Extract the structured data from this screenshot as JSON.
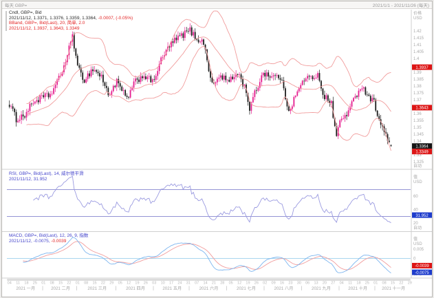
{
  "window": {
    "title_left": "每天 GBP=",
    "title_right": "2021/1/1 - 2021/11/26 (每天)"
  },
  "main_panel": {
    "legend": {
      "l1": "Cndl, GBP=, Bid",
      "l2a": "2021/11/12, 1.3371, 1.3376, 1.3359, 1.3364, ",
      "l2b": "-0.0007, (-0.05%)",
      "l3": "BBand, GBP=, Bid(Last), 20, 简单, 2.0",
      "l4": "2021/11/12, 1.3937, 1.3643, 1.3349"
    },
    "axis": {
      "label": "价格",
      "currency": "USD",
      "auto": "自动",
      "ticks": [
        1.42,
        1.415,
        1.41,
        1.405,
        1.4,
        1.395,
        1.39,
        1.385,
        1.38,
        1.375,
        1.37,
        1.365,
        1.36,
        1.355,
        1.35,
        1.345,
        1.34,
        1.335,
        1.33,
        1.325
      ]
    },
    "badges": [
      {
        "value": 1.3937,
        "type": "red"
      },
      {
        "value": 1.3643,
        "type": "red"
      },
      {
        "value": 1.3364,
        "type": "black"
      },
      {
        "value": 1.3349,
        "type": "red"
      }
    ]
  },
  "rsi_panel": {
    "legend": {
      "l1": "RSI, GBP=, Bid(Last), 14, 威尔德平滑",
      "l2": "2021/11/12, 31.952"
    },
    "axis": {
      "label": "值",
      "currency": "USD",
      "auto": "自动",
      "ticks": [
        60,
        40,
        20
      ],
      "bands": [
        70,
        30
      ],
      "badges": [
        {
          "value": 31.952,
          "type": "blue"
        }
      ]
    }
  },
  "macd_panel": {
    "legend": {
      "l1": "MACD, GBP=, Bid(Last), 12, 26, 9, 指数",
      "l2a": "2021/11/12, -0.0075, ",
      "l2b": "-0.0039"
    },
    "axis": {
      "label": "值",
      "currency": "USD",
      "auto": "自动",
      "ticks": [
        0.005,
        0
      ],
      "badges": [
        {
          "value": -0.0039,
          "type": "red"
        },
        {
          "value": -0.0075,
          "type": "blue"
        }
      ]
    }
  },
  "x_axis": {
    "day_labels": [
      "04",
      "11",
      "18",
      "25",
      "01",
      "08",
      "15",
      "22",
      "01",
      "08",
      "15",
      "22",
      "29",
      "05",
      "12",
      "19",
      "26",
      "03",
      "10",
      "17",
      "24",
      "31",
      "07",
      "14",
      "21",
      "28",
      "05",
      "12",
      "19",
      "26",
      "02",
      "09",
      "16",
      "23",
      "30",
      "06",
      "13",
      "20",
      "27",
      "04",
      "11",
      "18",
      "25",
      "01",
      "08",
      "15",
      "22",
      "29"
    ],
    "months": [
      {
        "label": "2021 一月",
        "days": 21
      },
      {
        "label": "2021 二月",
        "days": 20
      },
      {
        "label": "2021 三月",
        "days": 23
      },
      {
        "label": "2021 四月",
        "days": 22
      },
      {
        "label": "2021 五月",
        "days": 21
      },
      {
        "label": "2021 六月",
        "days": 22
      },
      {
        "label": "2021 七月",
        "days": 22
      },
      {
        "label": "2021 八月",
        "days": 22
      },
      {
        "label": "2021 九月",
        "days": 22
      },
      {
        "label": "2021 十月",
        "days": 21
      },
      {
        "label": "2021 十一月",
        "days": 21
      }
    ]
  },
  "colors": {
    "up": "#e51c8e",
    "down": "#1c1c1c",
    "bband": "#f19c9c",
    "rsi_line": "#9a9ae0",
    "rsi_band": "#8585cf",
    "macd_line": "#7cb5ef",
    "macd_signal": "#f19c9c",
    "macd_zero": "#a9d6ef",
    "badge_red": "#dd1515",
    "badge_black": "#141414",
    "badge_blue": "#1e3ccc",
    "tick_text": "#a9a9a9",
    "day_text": "#b5b5b5",
    "month_text": "#a6a6a6",
    "grid_line": "#cfcfcf"
  },
  "chart_data": {
    "type": "candlestick",
    "instrument": "GBP=",
    "period": "每天",
    "date_range": "2021/1/1 - 2021/11/26",
    "last_date": "2021/11/12",
    "ohlc_last": {
      "open": 1.3371,
      "high": 1.3376,
      "low": 1.3359,
      "close": 1.3364,
      "change": -0.0007,
      "change_pct": "-0.05%"
    },
    "indicators": {
      "bollinger": {
        "period": 20,
        "method": "简单",
        "width": 2.0,
        "upper": 1.3937,
        "mid": 1.3643,
        "lower": 1.3349
      },
      "rsi": {
        "period": 14,
        "method": "威尔德平滑",
        "value": 31.952,
        "upper_band": 70,
        "lower_band": 30
      },
      "macd": {
        "fast": 12,
        "slow": 26,
        "signal_period": 9,
        "method": "指数",
        "macd_value": -0.0075,
        "signal_value": -0.0039
      }
    },
    "price_axis": {
      "min": 1.3225,
      "max": 1.4275,
      "tick_step": 0.005
    },
    "rsi_axis": {
      "min": 10,
      "max": 94
    },
    "macd_axis": {
      "min": -0.0095,
      "max": 0.0125
    },
    "num_candles": 225,
    "axis_slots": 237,
    "anchors": [
      [
        0,
        1.367
      ],
      [
        4,
        1.356
      ],
      [
        9,
        1.359
      ],
      [
        14,
        1.3685
      ],
      [
        19,
        1.3715
      ],
      [
        24,
        1.3735
      ],
      [
        29,
        1.385
      ],
      [
        34,
        1.4015
      ],
      [
        37,
        1.418
      ],
      [
        40,
        1.393
      ],
      [
        44,
        1.3845
      ],
      [
        49,
        1.3925
      ],
      [
        54,
        1.387
      ],
      [
        58,
        1.3735
      ],
      [
        63,
        1.383
      ],
      [
        69,
        1.3705
      ],
      [
        74,
        1.3835
      ],
      [
        79,
        1.388
      ],
      [
        84,
        1.3825
      ],
      [
        89,
        1.3985
      ],
      [
        94,
        1.4095
      ],
      [
        99,
        1.415
      ],
      [
        104,
        1.419
      ],
      [
        106,
        1.4205
      ],
      [
        109,
        1.4155
      ],
      [
        114,
        1.4115
      ],
      [
        119,
        1.3805
      ],
      [
        124,
        1.3875
      ],
      [
        129,
        1.383
      ],
      [
        134,
        1.39
      ],
      [
        139,
        1.3765
      ],
      [
        141,
        1.363
      ],
      [
        144,
        1.3745
      ],
      [
        149,
        1.39
      ],
      [
        154,
        1.387
      ],
      [
        159,
        1.3865
      ],
      [
        164,
        1.3625
      ],
      [
        169,
        1.3755
      ],
      [
        174,
        1.387
      ],
      [
        179,
        1.384
      ],
      [
        181,
        1.3905
      ],
      [
        184,
        1.374
      ],
      [
        189,
        1.367
      ],
      [
        192,
        1.343
      ],
      [
        194,
        1.3545
      ],
      [
        199,
        1.3615
      ],
      [
        204,
        1.3745
      ],
      [
        206,
        1.38
      ],
      [
        209,
        1.376
      ],
      [
        214,
        1.368
      ],
      [
        219,
        1.349
      ],
      [
        224,
        1.3364
      ]
    ]
  }
}
